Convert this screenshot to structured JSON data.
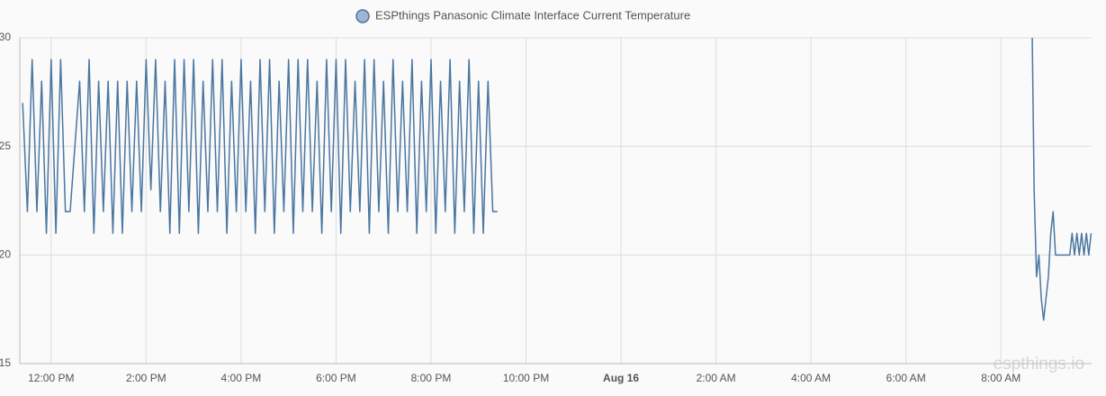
{
  "chart_data": {
    "type": "line",
    "legend": "ESPthings Panasonic Climate Interface Current Temperature",
    "watermark": "espthings.io",
    "series": [
      {
        "name": "ESPthings Panasonic Climate Interface Current Temperature",
        "color": "#4a76a0",
        "x": [
          11.4,
          11.5,
          11.6,
          11.7,
          11.8,
          11.9,
          12.0,
          12.1,
          12.2,
          12.3,
          12.4,
          12.5,
          12.6,
          12.7,
          12.8,
          12.9,
          13.0,
          13.1,
          13.2,
          13.3,
          13.4,
          13.5,
          13.6,
          13.7,
          13.8,
          13.9,
          14.0,
          14.1,
          14.2,
          14.3,
          14.4,
          14.5,
          14.6,
          14.7,
          14.8,
          14.9,
          15.0,
          15.1,
          15.2,
          15.3,
          15.4,
          15.5,
          15.6,
          15.7,
          15.8,
          15.9,
          16.0,
          16.1,
          16.2,
          16.3,
          16.4,
          16.5,
          16.6,
          16.7,
          16.8,
          16.9,
          17.0,
          17.1,
          17.2,
          17.3,
          17.4,
          17.5,
          17.6,
          17.7,
          17.8,
          17.9,
          18.0,
          18.1,
          18.2,
          18.3,
          18.4,
          18.5,
          18.6,
          18.7,
          18.8,
          18.9,
          19.0,
          19.1,
          19.2,
          19.3,
          19.4,
          19.5,
          19.6,
          19.7,
          19.8,
          19.9,
          20.0,
          20.1,
          20.2,
          20.3,
          20.4,
          20.5,
          20.6,
          20.7,
          20.8,
          20.9,
          21.0,
          21.1,
          21.2,
          21.3,
          21.4,
          27,
          32.66,
          32.7,
          32.75,
          32.8,
          32.85,
          32.9,
          32.95,
          33.0,
          33.05,
          33.1,
          33.15,
          33.3,
          33.45,
          33.5,
          33.55,
          33.6,
          33.65,
          33.7,
          33.75,
          33.8,
          33.85,
          33.9
        ],
        "values": [
          27,
          22,
          29,
          22,
          28,
          21,
          29,
          21,
          29,
          22,
          22,
          25,
          28,
          22,
          29,
          21,
          28,
          22,
          28,
          21,
          28,
          21,
          28,
          22,
          28,
          22,
          29,
          23,
          29,
          22,
          28,
          21,
          29,
          21,
          29,
          22,
          29,
          21,
          28,
          22,
          29,
          22,
          29,
          21,
          28,
          22,
          29,
          22,
          28,
          21,
          29,
          22,
          29,
          21,
          28,
          22,
          29,
          21,
          29,
          22,
          29,
          22,
          28,
          21,
          29,
          22,
          29,
          21,
          29,
          22,
          28,
          22,
          29,
          21,
          29,
          22,
          28,
          21,
          29,
          22,
          28,
          22,
          29,
          21,
          28,
          22,
          29,
          21,
          28,
          22,
          29,
          21,
          28,
          22,
          29,
          21,
          28,
          21,
          28,
          22,
          22,
          null,
          30,
          23,
          19,
          20,
          18,
          17,
          18,
          19,
          21,
          22,
          20,
          20,
          20,
          21,
          20,
          21,
          20,
          21,
          20,
          21,
          20,
          21
        ]
      }
    ],
    "xlim": [
      11.34,
      33.91
    ],
    "xticks": [
      {
        "value": 12,
        "label": "12:00 PM"
      },
      {
        "value": 14,
        "label": "2:00 PM"
      },
      {
        "value": 16,
        "label": "4:00 PM"
      },
      {
        "value": 18,
        "label": "6:00 PM"
      },
      {
        "value": 20,
        "label": "8:00 PM"
      },
      {
        "value": 22,
        "label": "10:00 PM"
      },
      {
        "value": 24,
        "label": "Aug 16"
      },
      {
        "value": 26,
        "label": "2:00 AM"
      },
      {
        "value": 28,
        "label": "4:00 AM"
      },
      {
        "value": 30,
        "label": "6:00 AM"
      },
      {
        "value": 32,
        "label": "8:00 AM"
      }
    ],
    "ylim": [
      15,
      30
    ],
    "yticks": [
      15,
      20,
      25,
      30
    ],
    "grid": true
  }
}
